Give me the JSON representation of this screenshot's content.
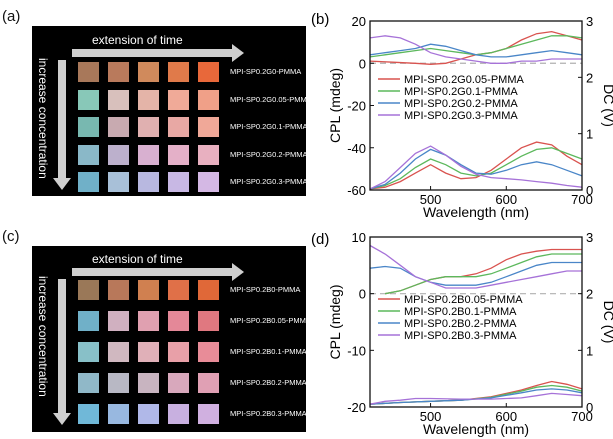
{
  "panels": {
    "a": {
      "label": "(a)",
      "time_label": "extension of time",
      "conc_label": "increase concentration",
      "rows": [
        {
          "label": "MPI-SP0.2G0-PMMA",
          "colors": [
            "#a8785a",
            "#b97a5c",
            "#d08a5c",
            "#e07a4a",
            "#e8683a"
          ]
        },
        {
          "label": "MPI-SP0.2G0.05-PMMA",
          "colors": [
            "#88c8b8",
            "#d8c0bc",
            "#e4b4a8",
            "#f0aa98",
            "#f0a088"
          ]
        },
        {
          "label": "MPI-SP0.2G0.1-PMMA",
          "colors": [
            "#78b8b0",
            "#c8aab0",
            "#e0b0b0",
            "#e8a8a4",
            "#f0a898"
          ]
        },
        {
          "label": "MPI-SP0.2G0.2-PMMA",
          "colors": [
            "#8ab8c8",
            "#bcb0cc",
            "#d8b0d0",
            "#e4b0c8",
            "#e8b0c0"
          ]
        },
        {
          "label": "MPI-SP0.2G0.3-PMMA",
          "colors": [
            "#70b0c8",
            "#a8c0d8",
            "#b8b8e0",
            "#c8b8e4",
            "#d4b8e4"
          ]
        }
      ]
    },
    "c": {
      "label": "(c)",
      "time_label": "extension of time",
      "conc_label": "increase concentration",
      "rows": [
        {
          "label": "MPI-SP0.2B0-PMMA",
          "colors": [
            "#9a7858",
            "#b8785a",
            "#d08050",
            "#e07048",
            "#e06838"
          ]
        },
        {
          "label": "MPI-SP0.2B0.05-PMMA",
          "colors": [
            "#70b0c8",
            "#d0b0c0",
            "#e0a0b0",
            "#e48898",
            "#e07880"
          ]
        },
        {
          "label": "MPI-SP0.2B0.1-PMMA",
          "colors": [
            "#88c0c8",
            "#d0b8c0",
            "#e0b0b8",
            "#e8a0a8",
            "#e88c98"
          ]
        },
        {
          "label": "MPI-SP0.2B0.2-PMMA",
          "colors": [
            "#90b8c8",
            "#b8b8c4",
            "#c8b4c0",
            "#d8a8bc",
            "#e0a0b4"
          ]
        },
        {
          "label": "MPI-SP0.2B0.3-PMMA",
          "colors": [
            "#70b8d8",
            "#98b8e0",
            "#b0b8e8",
            "#c8b0e0",
            "#d0b0e0"
          ]
        }
      ]
    },
    "b_label": "(b)",
    "d_label": "(d)"
  },
  "chart_data": [
    {
      "type": "line",
      "panel": "b",
      "xlabel": "Wavelength (nm)",
      "ylabel": "CPL (mdeg)",
      "ylabel_right": "DC (V)",
      "xlim": [
        420,
        700
      ],
      "ylim": [
        -60,
        20
      ],
      "ylim_right": [
        0,
        3
      ],
      "xticks": [
        500,
        600,
        700
      ],
      "yticks": [
        -60,
        -40,
        -20,
        0,
        20
      ],
      "yticks_right": [
        0,
        1,
        2,
        3
      ],
      "legend": "center-left",
      "series": [
        {
          "name": "MPI-SP0.2G0.05-PMMA",
          "color": "#d9534f",
          "cpl": [
            [
              420,
              1
            ],
            [
              450,
              0.5
            ],
            [
              480,
              0
            ],
            [
              500,
              -0.5
            ],
            [
              520,
              0
            ],
            [
              540,
              2
            ],
            [
              560,
              4
            ],
            [
              580,
              5
            ],
            [
              600,
              7
            ],
            [
              620,
              11
            ],
            [
              640,
              14
            ],
            [
              660,
              15
            ],
            [
              680,
              13
            ],
            [
              700,
              11
            ]
          ],
          "dc": [
            [
              420,
              0.02
            ],
            [
              440,
              0.05
            ],
            [
              460,
              0.15
            ],
            [
              480,
              0.3
            ],
            [
              500,
              0.45
            ],
            [
              520,
              0.3
            ],
            [
              540,
              0.2
            ],
            [
              560,
              0.22
            ],
            [
              580,
              0.35
            ],
            [
              600,
              0.55
            ],
            [
              620,
              0.75
            ],
            [
              640,
              0.85
            ],
            [
              660,
              0.8
            ],
            [
              680,
              0.6
            ],
            [
              700,
              0.45
            ]
          ]
        },
        {
          "name": "MPI-SP0.2G0.1-PMMA",
          "color": "#5cb85c",
          "cpl": [
            [
              420,
              3
            ],
            [
              440,
              4
            ],
            [
              460,
              5
            ],
            [
              480,
              6
            ],
            [
              500,
              7
            ],
            [
              520,
              6
            ],
            [
              540,
              5
            ],
            [
              560,
              4
            ],
            [
              580,
              5
            ],
            [
              600,
              7
            ],
            [
              620,
              9
            ],
            [
              640,
              11
            ],
            [
              660,
              13
            ],
            [
              680,
              13
            ],
            [
              700,
              12
            ]
          ],
          "dc": [
            [
              420,
              0.02
            ],
            [
              440,
              0.08
            ],
            [
              460,
              0.2
            ],
            [
              480,
              0.4
            ],
            [
              500,
              0.55
            ],
            [
              520,
              0.45
            ],
            [
              540,
              0.3
            ],
            [
              560,
              0.25
            ],
            [
              580,
              0.3
            ],
            [
              600,
              0.45
            ],
            [
              620,
              0.6
            ],
            [
              640,
              0.72
            ],
            [
              660,
              0.75
            ],
            [
              680,
              0.65
            ],
            [
              700,
              0.55
            ]
          ]
        },
        {
          "name": "MPI-SP0.2G0.2-PMMA",
          "color": "#4a86c8",
          "cpl": [
            [
              420,
              4
            ],
            [
              440,
              5
            ],
            [
              460,
              6
            ],
            [
              480,
              7
            ],
            [
              500,
              9
            ],
            [
              520,
              8
            ],
            [
              540,
              6
            ],
            [
              560,
              4
            ],
            [
              580,
              3
            ],
            [
              600,
              3
            ],
            [
              620,
              4
            ],
            [
              640,
              5
            ],
            [
              660,
              6
            ],
            [
              680,
              5
            ],
            [
              700,
              4
            ]
          ],
          "dc": [
            [
              420,
              0.02
            ],
            [
              440,
              0.1
            ],
            [
              460,
              0.3
            ],
            [
              480,
              0.55
            ],
            [
              500,
              0.72
            ],
            [
              520,
              0.62
            ],
            [
              540,
              0.45
            ],
            [
              560,
              0.3
            ],
            [
              580,
              0.28
            ],
            [
              600,
              0.35
            ],
            [
              620,
              0.45
            ],
            [
              640,
              0.5
            ],
            [
              660,
              0.45
            ],
            [
              680,
              0.35
            ],
            [
              700,
              0.25
            ]
          ]
        },
        {
          "name": "MPI-SP0.2G0.3-PMMA",
          "color": "#a672d8",
          "cpl": [
            [
              420,
              12
            ],
            [
              440,
              13
            ],
            [
              460,
              12
            ],
            [
              480,
              9
            ],
            [
              500,
              5
            ],
            [
              520,
              3
            ],
            [
              540,
              2
            ],
            [
              560,
              1
            ],
            [
              580,
              0
            ],
            [
              600,
              0
            ],
            [
              620,
              1
            ],
            [
              640,
              1
            ],
            [
              660,
              2
            ],
            [
              680,
              2
            ],
            [
              700,
              2
            ]
          ],
          "dc": [
            [
              420,
              0.02
            ],
            [
              440,
              0.15
            ],
            [
              460,
              0.4
            ],
            [
              480,
              0.65
            ],
            [
              500,
              0.78
            ],
            [
              520,
              0.62
            ],
            [
              540,
              0.42
            ],
            [
              560,
              0.28
            ],
            [
              580,
              0.22
            ],
            [
              600,
              0.2
            ],
            [
              620,
              0.18
            ],
            [
              640,
              0.15
            ],
            [
              660,
              0.12
            ],
            [
              680,
              0.08
            ],
            [
              700,
              0.05
            ]
          ]
        }
      ]
    },
    {
      "type": "line",
      "panel": "d",
      "xlabel": "Wavelength (nm)",
      "ylabel": "CPL (mdeg)",
      "ylabel_right": "DC (V)",
      "xlim": [
        420,
        700
      ],
      "ylim": [
        -20,
        10
      ],
      "ylim_right": [
        0,
        3
      ],
      "xticks": [
        500,
        600,
        700
      ],
      "yticks": [
        -20,
        -10,
        0,
        10
      ],
      "yticks_right": [
        0,
        1,
        2,
        3
      ],
      "legend": "center-left",
      "series": [
        {
          "name": "MPI-SP0.2B0.05-PMMA",
          "color": "#d9534f",
          "cpl": [
            [
              440,
              0
            ],
            [
              460,
              0.5
            ],
            [
              480,
              1.5
            ],
            [
              500,
              2.5
            ],
            [
              520,
              3
            ],
            [
              540,
              3
            ],
            [
              560,
              3.5
            ],
            [
              580,
              4.5
            ],
            [
              600,
              6
            ],
            [
              620,
              7
            ],
            [
              640,
              7.5
            ],
            [
              660,
              7.8
            ],
            [
              680,
              7.8
            ],
            [
              700,
              7.8
            ]
          ],
          "dc": [
            [
              420,
              0.05
            ],
            [
              460,
              0.08
            ],
            [
              500,
              0.1
            ],
            [
              540,
              0.12
            ],
            [
              580,
              0.18
            ],
            [
              620,
              0.3
            ],
            [
              640,
              0.38
            ],
            [
              660,
              0.45
            ],
            [
              680,
              0.4
            ],
            [
              700,
              0.32
            ]
          ]
        },
        {
          "name": "MPI-SP0.2B0.1-PMMA",
          "color": "#5cb85c",
          "cpl": [
            [
              440,
              0
            ],
            [
              460,
              0.5
            ],
            [
              480,
              1.5
            ],
            [
              500,
              2.5
            ],
            [
              520,
              3
            ],
            [
              540,
              3
            ],
            [
              560,
              3
            ],
            [
              580,
              3.5
            ],
            [
              600,
              4.5
            ],
            [
              620,
              5.5
            ],
            [
              640,
              6.5
            ],
            [
              660,
              7
            ],
            [
              680,
              7
            ],
            [
              700,
              7
            ]
          ],
          "dc": [
            [
              420,
              0.05
            ],
            [
              460,
              0.08
            ],
            [
              500,
              0.1
            ],
            [
              540,
              0.12
            ],
            [
              580,
              0.17
            ],
            [
              620,
              0.28
            ],
            [
              640,
              0.35
            ],
            [
              660,
              0.38
            ],
            [
              680,
              0.35
            ],
            [
              700,
              0.28
            ]
          ]
        },
        {
          "name": "MPI-SP0.2B0.2-PMMA",
          "color": "#4a86c8",
          "cpl": [
            [
              420,
              4.5
            ],
            [
              440,
              4.8
            ],
            [
              460,
              4.5
            ],
            [
              480,
              3
            ],
            [
              500,
              2
            ],
            [
              520,
              1.5
            ],
            [
              540,
              1.5
            ],
            [
              560,
              1.5
            ],
            [
              580,
              2
            ],
            [
              600,
              3
            ],
            [
              620,
              4
            ],
            [
              640,
              5
            ],
            [
              660,
              5.5
            ],
            [
              680,
              5.5
            ],
            [
              700,
              5.5
            ]
          ],
          "dc": [
            [
              420,
              0.05
            ],
            [
              460,
              0.08
            ],
            [
              500,
              0.1
            ],
            [
              540,
              0.12
            ],
            [
              580,
              0.16
            ],
            [
              620,
              0.25
            ],
            [
              640,
              0.3
            ],
            [
              660,
              0.32
            ],
            [
              680,
              0.3
            ],
            [
              700,
              0.25
            ]
          ]
        },
        {
          "name": "MPI-SP0.2B0.3-PMMA",
          "color": "#a672d8",
          "cpl": [
            [
              420,
              8.5
            ],
            [
              440,
              7
            ],
            [
              460,
              5
            ],
            [
              480,
              3
            ],
            [
              500,
              2
            ],
            [
              520,
              1
            ],
            [
              540,
              1
            ],
            [
              560,
              1
            ],
            [
              580,
              1.5
            ],
            [
              600,
              2
            ],
            [
              620,
              2.5
            ],
            [
              640,
              3
            ],
            [
              660,
              3.5
            ],
            [
              680,
              4
            ],
            [
              700,
              4
            ]
          ],
          "dc": [
            [
              420,
              0.05
            ],
            [
              440,
              0.1
            ],
            [
              460,
              0.12
            ],
            [
              480,
              0.15
            ],
            [
              500,
              0.15
            ],
            [
              540,
              0.14
            ],
            [
              580,
              0.14
            ],
            [
              620,
              0.16
            ],
            [
              640,
              0.2
            ],
            [
              660,
              0.24
            ],
            [
              680,
              0.22
            ],
            [
              700,
              0.2
            ]
          ]
        }
      ]
    }
  ]
}
